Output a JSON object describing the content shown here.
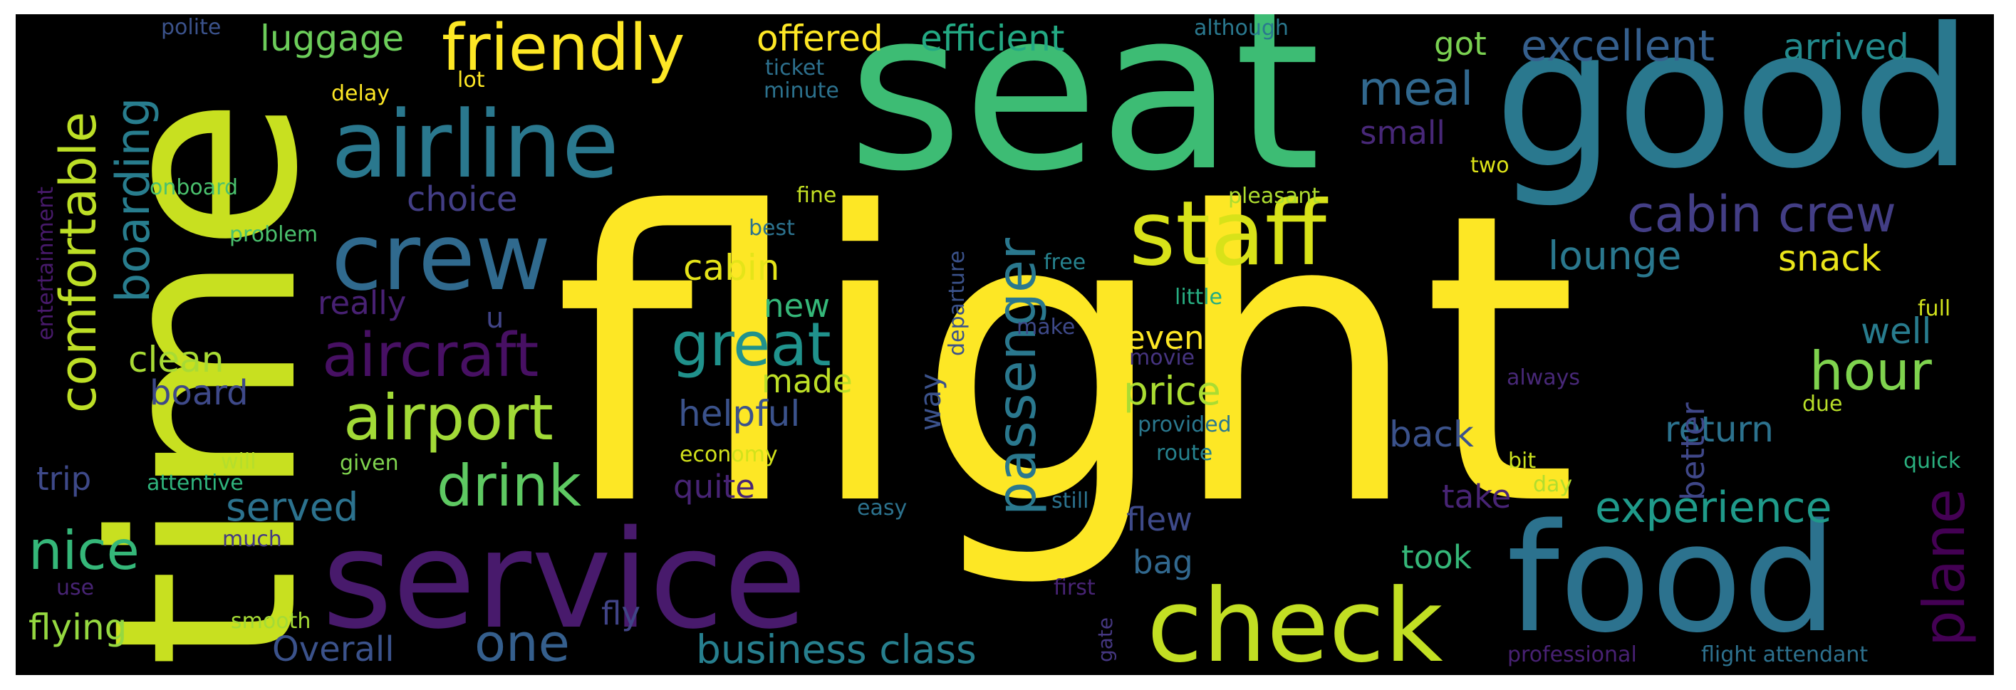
{
  "words": [
    {
      "text": "flight",
      "color": "#fde725"
    },
    {
      "text": "seat",
      "color": "#3dbc74"
    },
    {
      "text": "time",
      "color": "#c8e020"
    },
    {
      "text": "good",
      "color": "#2a788e"
    },
    {
      "text": "service",
      "color": "#481a6c"
    },
    {
      "text": "food",
      "color": "#2c728e"
    },
    {
      "text": "check",
      "color": "#c2df23"
    },
    {
      "text": "airline",
      "color": "#2a788e"
    },
    {
      "text": "crew",
      "color": "#306a8e"
    },
    {
      "text": "staff",
      "color": "#d8e219"
    },
    {
      "text": "friendly",
      "color": "#fde725"
    },
    {
      "text": "comfortable",
      "color": "#bddf26"
    },
    {
      "text": "airport",
      "color": "#a2da37"
    },
    {
      "text": "aircraft",
      "color": "#471063"
    },
    {
      "text": "cabin crew",
      "color": "#433e85"
    },
    {
      "text": "passenger",
      "color": "#2a788e"
    },
    {
      "text": "great",
      "color": "#20928c"
    },
    {
      "text": "drink",
      "color": "#5ec962"
    },
    {
      "text": "boarding",
      "color": "#287d8e"
    },
    {
      "text": "plane",
      "color": "#440154"
    },
    {
      "text": "hour",
      "color": "#7fd34e"
    },
    {
      "text": "meal",
      "color": "#31688e"
    },
    {
      "text": "nice",
      "color": "#35b779"
    },
    {
      "text": "one",
      "color": "#355f8d"
    },
    {
      "text": "excellent",
      "color": "#355f8d"
    },
    {
      "text": "experience",
      "color": "#1f9a8a"
    },
    {
      "text": "business class",
      "color": "#277f8e"
    },
    {
      "text": "luggage",
      "color": "#6ccd5a"
    },
    {
      "text": "offered",
      "color": "#fde725"
    },
    {
      "text": "efficient",
      "color": "#23a983"
    },
    {
      "text": "arrived",
      "color": "#238a8d"
    },
    {
      "text": "Overall",
      "color": "#3b528b"
    },
    {
      "text": "flying",
      "color": "#95d840"
    },
    {
      "text": "served",
      "color": "#2c728e"
    },
    {
      "text": "clean",
      "color": "#a8db34"
    },
    {
      "text": "board",
      "color": "#3e4989"
    },
    {
      "text": "helpful",
      "color": "#3b528b"
    },
    {
      "text": "cabin",
      "color": "#e5e419"
    },
    {
      "text": "lounge",
      "color": "#2a788e"
    },
    {
      "text": "snack",
      "color": "#eae51a"
    },
    {
      "text": "choice",
      "color": "#433e85"
    },
    {
      "text": "price",
      "color": "#aadc32"
    },
    {
      "text": "made",
      "color": "#bddf26"
    },
    {
      "text": "new",
      "color": "#35b779"
    },
    {
      "text": "even",
      "color": "#fde725"
    },
    {
      "text": "well",
      "color": "#287c8e"
    },
    {
      "text": "return",
      "color": "#2c728e"
    },
    {
      "text": "back",
      "color": "#3b528b"
    },
    {
      "text": "better",
      "color": "#3f4788"
    },
    {
      "text": "really",
      "color": "#482173"
    },
    {
      "text": "quite",
      "color": "#482475"
    },
    {
      "text": "small",
      "color": "#482878"
    },
    {
      "text": "trip",
      "color": "#3e4989"
    },
    {
      "text": "flew",
      "color": "#3e4a89"
    },
    {
      "text": "bag",
      "color": "#31688e"
    },
    {
      "text": "took",
      "color": "#35b779"
    },
    {
      "text": "take",
      "color": "#482475"
    },
    {
      "text": "fly",
      "color": "#414487"
    },
    {
      "text": "got",
      "color": "#7ad151"
    },
    {
      "text": "way",
      "color": "#3b528b"
    },
    {
      "text": "u",
      "color": "#414487"
    },
    {
      "text": "departure",
      "color": "#3b528b"
    },
    {
      "text": "onboard",
      "color": "#4ac16d"
    },
    {
      "text": "problem",
      "color": "#4ac16d"
    },
    {
      "text": "best",
      "color": "#2c728e"
    },
    {
      "text": "fine",
      "color": "#c2df23"
    },
    {
      "text": "free",
      "color": "#26828e"
    },
    {
      "text": "little",
      "color": "#27ad81"
    },
    {
      "text": "make",
      "color": "#3e4989"
    },
    {
      "text": "movie",
      "color": "#463480"
    },
    {
      "text": "pleasant",
      "color": "#addc30"
    },
    {
      "text": "provided",
      "color": "#2a788e"
    },
    {
      "text": "route",
      "color": "#26828e"
    },
    {
      "text": "economy",
      "color": "#d2e21b"
    },
    {
      "text": "given",
      "color": "#7fd34e"
    },
    {
      "text": "will",
      "color": "#b5de2b"
    },
    {
      "text": "attentive",
      "color": "#2fb47c"
    },
    {
      "text": "easy",
      "color": "#2c728e"
    },
    {
      "text": "still",
      "color": "#2c728e"
    },
    {
      "text": "much",
      "color": "#443983"
    },
    {
      "text": "use",
      "color": "#482475"
    },
    {
      "text": "smooth",
      "color": "#a5db36"
    },
    {
      "text": "first",
      "color": "#482475"
    },
    {
      "text": "gate",
      "color": "#453781"
    },
    {
      "text": "professional",
      "color": "#482173"
    },
    {
      "text": "flight attendant",
      "color": "#2d718e"
    },
    {
      "text": "ticket",
      "color": "#2d708e"
    },
    {
      "text": "minute",
      "color": "#2c728e"
    },
    {
      "text": "delay",
      "color": "#fde725"
    },
    {
      "text": "lot",
      "color": "#fde725"
    },
    {
      "text": "polite",
      "color": "#3b528b"
    },
    {
      "text": "although",
      "color": "#2a788e"
    },
    {
      "text": "entertainment",
      "color": "#481a6c"
    },
    {
      "text": "two",
      "color": "#dde318"
    },
    {
      "text": "always",
      "color": "#482878"
    },
    {
      "text": "due",
      "color": "#b8de29"
    },
    {
      "text": "full",
      "color": "#d0e11c"
    },
    {
      "text": "quick",
      "color": "#2ab07f"
    },
    {
      "text": "bit",
      "color": "#cae11f"
    },
    {
      "text": "day",
      "color": "#b2dd2d"
    }
  ]
}
